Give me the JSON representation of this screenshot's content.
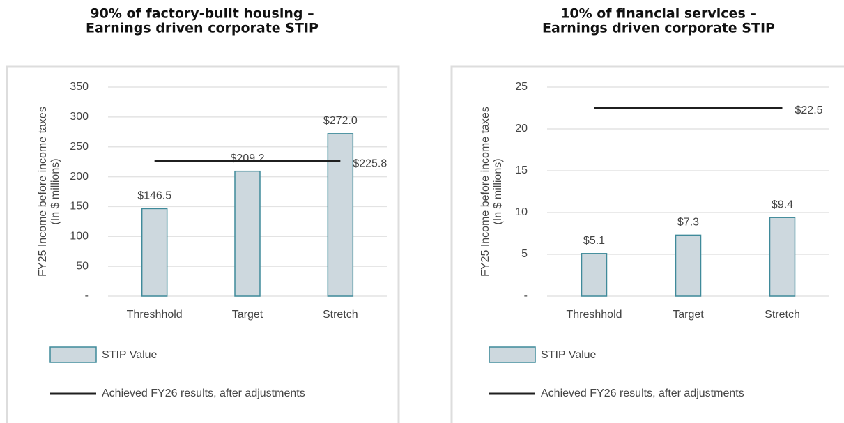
{
  "chart_data": [
    {
      "type": "bar",
      "title": [
        "90% of factory-built housing –",
        "Earnings driven corporate STIP"
      ],
      "ylabel": [
        "FY25 Income before income taxes",
        "(In $ millions)"
      ],
      "categories": [
        "Threshhold",
        "Target",
        "Stretch"
      ],
      "series": [
        {
          "name": "STIP Value",
          "color": "#cdd8de",
          "edge": "#3f8a9a",
          "values": [
            146.5,
            209.2,
            272.0
          ],
          "value_labels": [
            "$146.5",
            "$209.2",
            "$272.0"
          ]
        }
      ],
      "reference": {
        "name": "Achieved FY26 results, after adjustments",
        "color": "#1f1f1f",
        "value": 225.8,
        "value_label": "$225.8"
      },
      "ylim": [
        0,
        350
      ],
      "yticks": [
        {
          "value": 0,
          "label": "-"
        },
        50,
        100,
        150,
        200,
        250,
        300,
        350
      ],
      "grid": true
    },
    {
      "type": "bar",
      "title": [
        "10% of financial services –",
        "Earnings driven corporate STIP"
      ],
      "ylabel": [
        "FY25 Income before income taxes",
        "(In $ millions)"
      ],
      "categories": [
        "Threshhold",
        "Target",
        "Stretch"
      ],
      "series": [
        {
          "name": "STIP Value",
          "color": "#cdd8de",
          "edge": "#3f8a9a",
          "values": [
            5.1,
            7.3,
            9.4
          ],
          "value_labels": [
            "$5.1",
            "$7.3",
            "$9.4"
          ]
        }
      ],
      "reference": {
        "name": "Achieved FY26 results, after adjustments",
        "color": "#1f1f1f",
        "value": 22.5,
        "value_label": "$22.5"
      },
      "ylim": [
        0,
        25
      ],
      "yticks": [
        {
          "value": 0,
          "label": "-"
        },
        5,
        10,
        15,
        20,
        25
      ],
      "grid": true
    }
  ]
}
